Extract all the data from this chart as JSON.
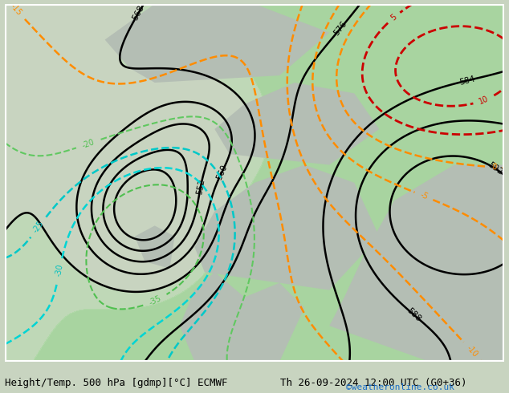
{
  "title_left": "Height/Temp. 500 hPa [gdmp][°C] ECMWF",
  "title_right": "Th 26-09-2024 12:00 UTC (G0+36)",
  "credit": "©weatheronline.co.uk",
  "bg_sea_color": "#c8d8c8",
  "bg_land_color": "#b8c8b8",
  "green_shade_color": "#90c890",
  "font_size_title": 9,
  "font_size_credit": 8,
  "figsize": [
    6.34,
    4.9
  ],
  "dpi": 100
}
